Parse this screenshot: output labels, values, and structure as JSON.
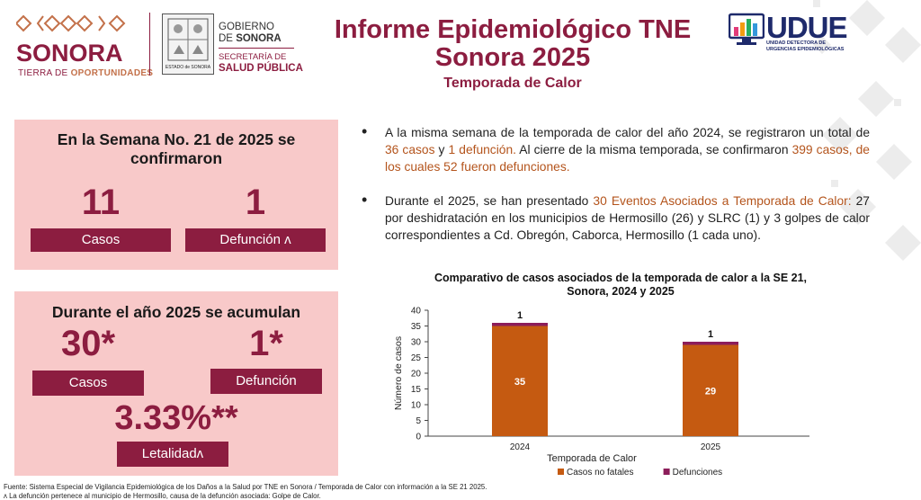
{
  "header": {
    "sonora_logo": "SONORA",
    "sonora_tagline_a": "TIERRA DE",
    "sonora_tagline_b": "OPORTUNIDADES",
    "gob_line1": "GOBIERNO",
    "gob_line2a": "DE",
    "gob_line2b": "SONORA",
    "sec_line": "SECRETARÍA DE",
    "salud_line": "SALUD PÚBLICA",
    "seal_caption": "ESTADO de SONORA",
    "title_line1": "Informe Epidemiológico TNE",
    "title_line2": "Sonora 2025",
    "subtitle": "Temporada de Calor",
    "udue_logo": "UDUE",
    "udue_tagline_1": "UNIDAD DETECTORA DE",
    "udue_tagline_2": "URGENCIAS EPIDEMIOLÓGICAS"
  },
  "panel_week": {
    "title_1": "En la Semana No. 21 de 2025 se",
    "title_2": "confirmaron",
    "casos_value": "11",
    "casos_label": "Casos",
    "def_value": "1",
    "def_label": "Defunción ʌ"
  },
  "panel_year": {
    "title": "Durante el año 2025 se acumulan",
    "casos_value": "30*",
    "casos_label": "Casos",
    "def_value": "1*",
    "def_label": "Defunción",
    "let_value": "3.33%**",
    "let_label": "Letalidadʌ"
  },
  "bullets": {
    "b1_p1": "A la misma semana de la temporada de calor del año 2024, se registraron un total de ",
    "b1_h1": "36 casos",
    "b1_p2": " y ",
    "b1_h2": "1 defunción.",
    "b1_p3": " Al cierre de la misma temporada, se confirmaron ",
    "b1_h3": "399 casos, de los cuales 52 fueron defunciones.",
    "b2_p1": "Durante el 2025, se han presentado ",
    "b2_h1": "30 Eventos Asociados a Temporada de Calor:",
    "b2_p2": " 27 por deshidratación en los municipios de Hermosillo (26) y SLRC (1) y 3 golpes de calor correspondientes a Cd. Obregón, Caborca, Hermosillo (1 cada uno)."
  },
  "chart_data": {
    "type": "bar",
    "stacked": true,
    "title": "Comparativo de casos asociados de la temporada de calor a la SE 21, Sonora, 2024 y 2025",
    "xlabel": "Temporada de Calor",
    "ylabel": "Número de casos",
    "categories": [
      "2024",
      "2025"
    ],
    "ylim": [
      0,
      40
    ],
    "yticks": [
      0,
      5,
      10,
      15,
      20,
      25,
      30,
      35,
      40
    ],
    "legend_position": "bottom",
    "series": [
      {
        "name": "Casos no fatales",
        "values": [
          35,
          29
        ],
        "color": "#c55a11"
      },
      {
        "name": "Defunciones",
        "values": [
          1,
          1
        ],
        "color": "#8c1d5a"
      }
    ]
  },
  "footer": {
    "line1": "Fuente: Sistema Especial de Vigilancia Epidemiológica de los Daños a la Salud por TNE en Sonora / Temporada de Calor con información a la SE 21 2025.",
    "line2": "ʌ La defunción pertenece al municipio de Hermosillo, causa de la defunción asociada: Golpe de Calor."
  },
  "colors": {
    "brand": "#8c1d40",
    "panel": "#f8c9c9",
    "highlight": "#b4541c"
  }
}
